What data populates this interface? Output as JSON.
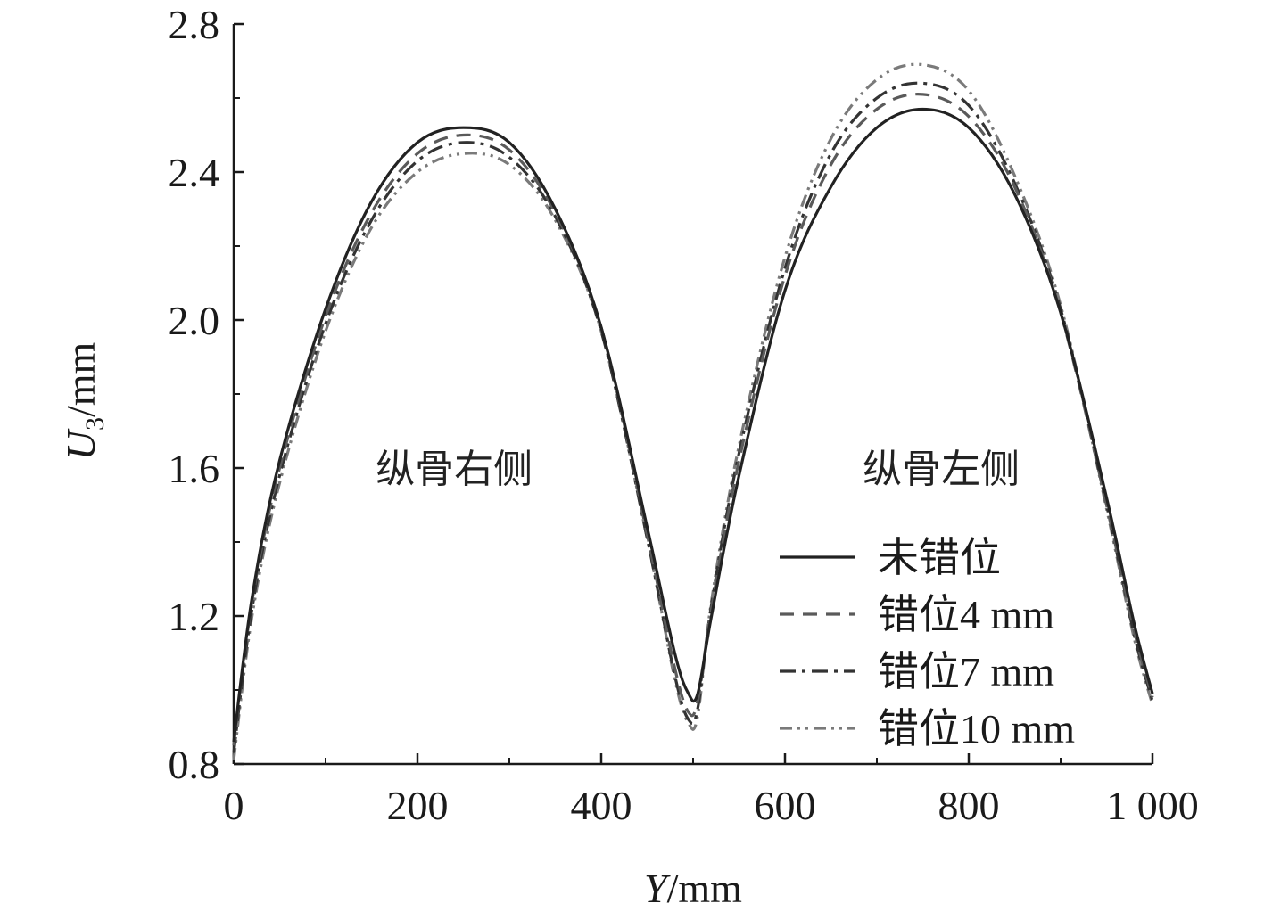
{
  "chart_data": {
    "type": "line",
    "title": "",
    "xlabel_var": "Y",
    "xlabel_unit": "/mm",
    "ylabel_var": "U",
    "ylabel_sub": "3",
    "ylabel_unit": "/mm",
    "xlim": [
      0,
      1000
    ],
    "ylim": [
      0.8,
      2.8
    ],
    "x_ticks": [
      0,
      200,
      400,
      600,
      800,
      1000
    ],
    "x_tick_labels": [
      "0",
      "200",
      "400",
      "600",
      "800",
      "1 000"
    ],
    "y_ticks": [
      0.8,
      1.2,
      1.6,
      2.0,
      2.4,
      2.8
    ],
    "y_tick_labels": [
      "0.8",
      "1.2",
      "1.6",
      "2.0",
      "2.4",
      "2.8"
    ],
    "grid": false,
    "legend_position": "bottom-right",
    "annotations": [
      {
        "text": "纵骨右侧",
        "x": 240,
        "y": 1.6
      },
      {
        "text": "纵骨左侧",
        "x": 770,
        "y": 1.6
      }
    ],
    "series": [
      {
        "name": "未错位",
        "style": "solid",
        "color": "#222222",
        "x": [
          0,
          20,
          50,
          100,
          150,
          200,
          250,
          300,
          350,
          400,
          450,
          480,
          495,
          505,
          520,
          550,
          600,
          650,
          700,
          750,
          800,
          850,
          900,
          950,
          980,
          1000
        ],
        "y": [
          0.86,
          1.25,
          1.62,
          2.03,
          2.32,
          2.48,
          2.52,
          2.48,
          2.3,
          1.98,
          1.44,
          1.1,
          0.99,
          0.99,
          1.2,
          1.58,
          2.08,
          2.36,
          2.52,
          2.57,
          2.52,
          2.34,
          2.02,
          1.52,
          1.18,
          0.99
        ]
      },
      {
        "name": "错位4 mm",
        "style": "dash",
        "color": "#5a5a5a",
        "x": [
          0,
          20,
          50,
          100,
          150,
          200,
          250,
          300,
          350,
          400,
          450,
          480,
          495,
          505,
          520,
          550,
          600,
          650,
          700,
          750,
          800,
          850,
          900,
          950,
          980,
          1000
        ],
        "y": [
          0.85,
          1.24,
          1.6,
          2.01,
          2.29,
          2.45,
          2.5,
          2.46,
          2.29,
          1.98,
          1.42,
          1.06,
          0.94,
          0.97,
          1.22,
          1.62,
          2.12,
          2.42,
          2.57,
          2.61,
          2.55,
          2.36,
          2.02,
          1.5,
          1.16,
          0.98
        ]
      },
      {
        "name": "错位7 mm",
        "style": "dashdot",
        "color": "#333333",
        "x": [
          0,
          20,
          50,
          100,
          150,
          200,
          250,
          300,
          350,
          400,
          450,
          480,
          495,
          505,
          520,
          550,
          600,
          650,
          700,
          750,
          800,
          850,
          900,
          950,
          980,
          1000
        ],
        "y": [
          0.83,
          1.22,
          1.58,
          1.99,
          2.27,
          2.43,
          2.48,
          2.44,
          2.28,
          1.97,
          1.41,
          1.04,
          0.92,
          0.95,
          1.23,
          1.64,
          2.14,
          2.45,
          2.6,
          2.64,
          2.58,
          2.37,
          2.03,
          1.5,
          1.15,
          0.97
        ]
      },
      {
        "name": "错位10 mm",
        "style": "dashdotdot",
        "color": "#7a7a7a",
        "x": [
          0,
          20,
          50,
          100,
          150,
          200,
          250,
          300,
          350,
          400,
          450,
          480,
          495,
          505,
          520,
          550,
          600,
          650,
          700,
          750,
          800,
          850,
          900,
          950,
          980,
          1000
        ],
        "y": [
          0.81,
          1.2,
          1.56,
          1.97,
          2.25,
          2.4,
          2.45,
          2.42,
          2.27,
          1.97,
          1.41,
          1.03,
          0.91,
          0.93,
          1.24,
          1.66,
          2.17,
          2.49,
          2.65,
          2.69,
          2.62,
          2.39,
          2.04,
          1.49,
          1.14,
          0.96
        ]
      }
    ]
  }
}
